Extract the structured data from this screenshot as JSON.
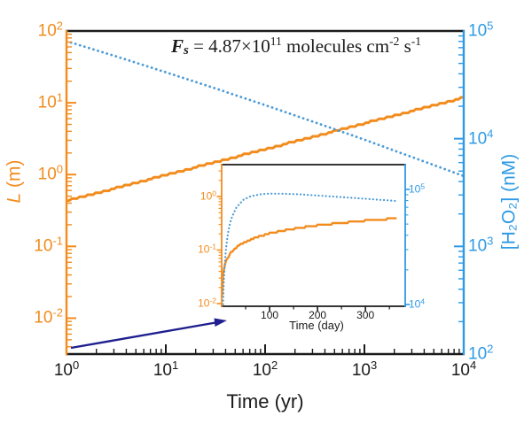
{
  "colors": {
    "orange": "#F28C1E",
    "blue_curve": "#4C9BD7",
    "blue_axis": "#2E9AE4",
    "navy_arrow": "#1F1F8F",
    "text": "#1A1A1A"
  },
  "annotation": {
    "var": "F",
    "var_sub": "s",
    "body": " = 4.87×10",
    "exp1": "11",
    "unit1": " molecules cm",
    "exp2": "-2",
    "unit2": " s",
    "exp3": "-1"
  },
  "main_axes": {
    "x": {
      "label": "Time (yr)",
      "scale": "log",
      "range_exp": [
        0,
        4
      ],
      "tick_exps": [
        0,
        1,
        2,
        3,
        4
      ]
    },
    "left": {
      "label_var": "L",
      "label_unit": " (m)",
      "scale": "log",
      "range_log": [
        -2.5,
        2
      ],
      "tick_exps": [
        2,
        1,
        0,
        -1,
        -2
      ]
    },
    "right": {
      "label": "[H₂O₂] (nM)",
      "scale": "log",
      "range_log": [
        2,
        5
      ],
      "tick_exps": [
        5,
        4,
        3,
        2
      ]
    }
  },
  "inset_axes": {
    "x": {
      "label": "Time (day)",
      "range": [
        0,
        383
      ],
      "tick_vals": [
        100,
        200,
        300
      ],
      "minor_vals": [
        50,
        150,
        250,
        350
      ]
    },
    "left": {
      "scale": "log",
      "range_log": [
        -2.05,
        0.595
      ],
      "tick_exps": [
        0,
        -1,
        -2
      ]
    },
    "right": {
      "scale": "log",
      "range_log": [
        3.985,
        5.215
      ],
      "tick_exps": [
        5,
        4
      ]
    }
  },
  "chart_data": {
    "type": "line",
    "title": "",
    "main": {
      "xlabel": "Time (yr)",
      "x_scale": "log",
      "grid": false,
      "series": [
        {
          "name": "L",
          "ylabel": "L (m)",
          "axis": "left",
          "style": "solid",
          "color_key": "orange",
          "points": [
            [
              1,
              0.43
            ],
            [
              1.78,
              0.53
            ],
            [
              3.16,
              0.65
            ],
            [
              5.62,
              0.8
            ],
            [
              10,
              0.99
            ],
            [
              17.8,
              1.21
            ],
            [
              31.6,
              1.49
            ],
            [
              56.2,
              1.83
            ],
            [
              100,
              2.25
            ],
            [
              178,
              2.77
            ],
            [
              316,
              3.41
            ],
            [
              562,
              4.19
            ],
            [
              1000,
              5.16
            ],
            [
              1780,
              6.34
            ],
            [
              3160,
              7.8
            ],
            [
              5620,
              9.6
            ],
            [
              10000,
              11.8
            ]
          ]
        },
        {
          "name": "H2O2",
          "ylabel": "[H2O2] (nM)",
          "axis": "right",
          "style": "dotted",
          "color_key": "blue_curve",
          "points": [
            [
              1,
              80500
            ],
            [
              3.16,
              58100
            ],
            [
              10,
              41400
            ],
            [
              31.6,
              29300
            ],
            [
              100,
              20500
            ],
            [
              316,
              14200
            ],
            [
              1000,
              9800
            ],
            [
              3160,
              6640
            ],
            [
              10000,
              4500
            ]
          ]
        }
      ]
    },
    "inset": {
      "xlabel": "Time (day)",
      "x_scale": "linear",
      "grid": false,
      "series": [
        {
          "name": "L",
          "axis": "left",
          "style": "solid",
          "color_key": "orange",
          "points": [
            [
              0.5,
              0.014
            ],
            [
              1,
              0.02
            ],
            [
              3,
              0.036
            ],
            [
              6,
              0.05
            ],
            [
              10,
              0.065
            ],
            [
              20,
              0.092
            ],
            [
              40,
              0.13
            ],
            [
              70,
              0.17
            ],
            [
              100,
              0.205
            ],
            [
              150,
              0.25
            ],
            [
              200,
              0.29
            ],
            [
              250,
              0.32
            ],
            [
              300,
              0.355
            ],
            [
              365,
              0.39
            ]
          ]
        },
        {
          "name": "H2O2",
          "axis": "right",
          "style": "dotted",
          "color_key": "blue_curve",
          "points": [
            [
              2,
              8100
            ],
            [
              5,
              18900
            ],
            [
              10,
              34000
            ],
            [
              15,
              45900
            ],
            [
              20,
              55500
            ],
            [
              30,
              69200
            ],
            [
              45,
              81000
            ],
            [
              60,
              86900
            ],
            [
              80,
              90600
            ],
            [
              100,
              92000
            ],
            [
              130,
              91600
            ],
            [
              160,
              90700
            ],
            [
              200,
              88500
            ],
            [
              250,
              85700
            ],
            [
              300,
              82900
            ],
            [
              365,
              79300
            ]
          ]
        }
      ]
    }
  }
}
